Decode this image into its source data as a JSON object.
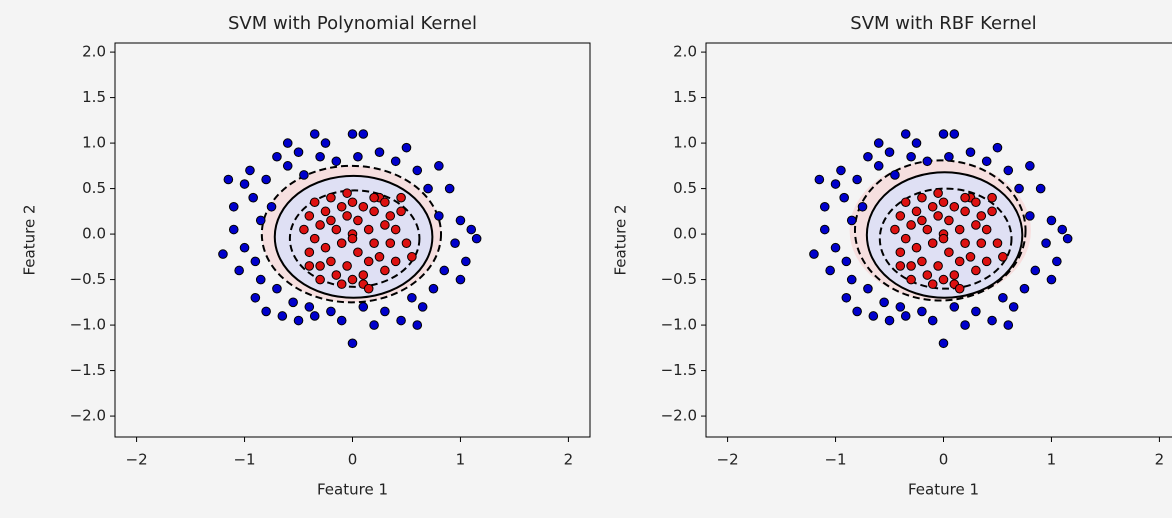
{
  "chart_data": [
    {
      "type": "scatter",
      "title": "SVM with Polynomial Kernel",
      "x_label": "Feature 1",
      "y_label": "Feature 2",
      "xlim": [
        -2.2,
        2.2
      ],
      "ylim": [
        -2.23,
        2.1
      ],
      "xticks": [
        {
          "value": -2,
          "label": "−2"
        },
        {
          "value": -1,
          "label": "−1"
        },
        0,
        1,
        2
      ],
      "yticks": [
        {
          "value": -2,
          "label": "−2.0"
        },
        {
          "value": -1.5,
          "label": "−1.5"
        },
        {
          "value": -1,
          "label": "−1.0"
        },
        {
          "value": -0.5,
          "label": "−0.5"
        },
        {
          "value": 0,
          "label": "0.0"
        },
        0.5,
        {
          "value": 1,
          "label": "1.0"
        },
        1.5,
        {
          "value": 2,
          "label": "2.0"
        }
      ],
      "regions": [
        {
          "color": "#f6dfdf",
          "cx": -0.01,
          "cy": 0.0,
          "rx": 0.83,
          "ry": 0.75
        },
        {
          "color": "#dfe0f4",
          "cx": 0.01,
          "cy": -0.03,
          "rx": 0.73,
          "ry": 0.67
        }
      ],
      "contours": [
        {
          "linestyle": "dashed",
          "cx": -0.01,
          "cy": 0.0,
          "rx": 0.83,
          "ry": 0.75
        },
        {
          "linestyle": "solid",
          "cx": 0.01,
          "cy": -0.03,
          "rx": 0.73,
          "ry": 0.67
        },
        {
          "linestyle": "dashed",
          "cx": 0.02,
          "cy": -0.05,
          "rx": 0.6,
          "ry": 0.53
        }
      ],
      "series": [
        {
          "color": "#0000cc",
          "x": [
            -1.2,
            -1.1,
            -1.1,
            -1.05,
            -1.0,
            -1.0,
            -0.95,
            -0.92,
            -0.9,
            -0.9,
            -0.85,
            -0.85,
            -0.8,
            -0.8,
            -0.75,
            -0.7,
            -0.7,
            -0.65,
            -0.6,
            -0.55,
            -0.5,
            -0.5,
            -0.45,
            -0.4,
            -0.35,
            -0.35,
            -0.3,
            -0.25,
            -0.2,
            -0.15,
            -0.1,
            0.0,
            0.0,
            0.05,
            0.1,
            0.1,
            0.2,
            0.25,
            0.3,
            0.4,
            0.45,
            0.5,
            0.55,
            0.6,
            0.65,
            0.7,
            0.75,
            0.8,
            0.8,
            0.85,
            0.9,
            0.95,
            1.0,
            1.0,
            1.05,
            1.1,
            1.15,
            -0.6,
            0.6,
            -1.15
          ],
          "y": [
            -0.22,
            0.3,
            0.05,
            -0.4,
            0.55,
            -0.15,
            0.7,
            0.4,
            -0.3,
            -0.7,
            0.15,
            -0.5,
            0.6,
            -0.85,
            0.3,
            0.85,
            -0.6,
            -0.9,
            0.75,
            -0.75,
            0.9,
            -0.95,
            0.65,
            -0.8,
            1.1,
            -0.9,
            0.85,
            1.0,
            -0.85,
            0.8,
            -0.95,
            1.1,
            -1.2,
            0.85,
            1.1,
            -0.8,
            -1.0,
            0.9,
            -0.85,
            0.8,
            -0.95,
            0.95,
            -0.7,
            0.7,
            -0.8,
            0.5,
            -0.6,
            0.75,
            0.2,
            -0.4,
            0.5,
            -0.1,
            0.15,
            -0.5,
            -0.3,
            0.05,
            -0.05,
            1.0,
            -1.0,
            0.6
          ]
        },
        {
          "color": "#dd1111",
          "x": [
            -0.45,
            -0.4,
            -0.4,
            -0.35,
            -0.35,
            -0.3,
            -0.3,
            -0.25,
            -0.25,
            -0.2,
            -0.2,
            -0.15,
            -0.15,
            -0.1,
            -0.1,
            -0.05,
            -0.05,
            0.0,
            0.0,
            0.05,
            0.05,
            0.1,
            0.1,
            0.15,
            0.15,
            0.2,
            0.2,
            0.25,
            0.25,
            0.3,
            0.3,
            0.35,
            0.35,
            0.4,
            0.4,
            0.45,
            0.5,
            0.55,
            -0.3,
            -0.1,
            0.1,
            0.3,
            -0.2,
            0.0,
            0.2,
            -0.4,
            0.45,
            0.0,
            -0.05,
            0.15
          ],
          "y": [
            0.05,
            -0.2,
            0.2,
            0.35,
            -0.05,
            0.1,
            -0.35,
            0.25,
            -0.15,
            0.4,
            -0.3,
            0.05,
            -0.45,
            0.3,
            -0.1,
            0.2,
            -0.35,
            0.35,
            0.0,
            -0.2,
            0.15,
            0.3,
            -0.45,
            0.05,
            -0.3,
            0.25,
            -0.1,
            0.4,
            -0.25,
            0.1,
            -0.4,
            0.2,
            -0.1,
            0.05,
            -0.3,
            0.25,
            -0.1,
            -0.25,
            -0.5,
            -0.55,
            -0.55,
            0.35,
            0.15,
            -0.5,
            0.4,
            -0.35,
            0.4,
            -0.05,
            0.45,
            -0.6
          ]
        }
      ]
    },
    {
      "type": "scatter",
      "title": "SVM with RBF Kernel",
      "x_label": "Feature 1",
      "y_label": "Feature 2",
      "xlim": [
        -2.2,
        2.2
      ],
      "ylim": [
        -2.23,
        2.1
      ],
      "xticks": [
        {
          "value": -2,
          "label": "−2"
        },
        {
          "value": -1,
          "label": "−1"
        },
        0,
        1,
        2
      ],
      "yticks": [
        {
          "value": -2,
          "label": "−2.0"
        },
        {
          "value": -1.5,
          "label": "−1.5"
        },
        {
          "value": -1,
          "label": "−1.0"
        },
        {
          "value": -0.5,
          "label": "−0.5"
        },
        {
          "value": 0,
          "label": "0.0"
        },
        0.5,
        {
          "value": 1,
          "label": "1.0"
        },
        1.5,
        {
          "value": 2,
          "label": "2.0"
        }
      ],
      "regions": [
        {
          "color": "#f6dfdf",
          "cx": -0.03,
          "cy": 0.04,
          "rx": 0.84,
          "ry": 0.77
        },
        {
          "color": "#dfe0f4",
          "cx": 0.01,
          "cy": -0.01,
          "rx": 0.72,
          "ry": 0.69
        }
      ],
      "contours": [
        {
          "linestyle": "dashed",
          "cx": -0.03,
          "cy": 0.04,
          "rx": 0.79,
          "ry": 0.77
        },
        {
          "linestyle": "solid",
          "cx": 0.01,
          "cy": -0.01,
          "rx": 0.72,
          "ry": 0.69
        },
        {
          "linestyle": "dashed",
          "cx": 0.02,
          "cy": -0.05,
          "rx": 0.61,
          "ry": 0.55
        }
      ],
      "series": [
        {
          "color": "#0000cc",
          "x": [
            -1.2,
            -1.1,
            -1.1,
            -1.05,
            -1.0,
            -1.0,
            -0.95,
            -0.92,
            -0.9,
            -0.9,
            -0.85,
            -0.85,
            -0.8,
            -0.8,
            -0.75,
            -0.7,
            -0.7,
            -0.65,
            -0.6,
            -0.55,
            -0.5,
            -0.5,
            -0.45,
            -0.4,
            -0.35,
            -0.35,
            -0.3,
            -0.25,
            -0.2,
            -0.15,
            -0.1,
            0.0,
            0.0,
            0.05,
            0.1,
            0.1,
            0.2,
            0.25,
            0.3,
            0.4,
            0.45,
            0.5,
            0.55,
            0.6,
            0.65,
            0.7,
            0.75,
            0.8,
            0.8,
            0.85,
            0.9,
            0.95,
            1.0,
            1.0,
            1.05,
            1.1,
            1.15,
            -0.6,
            0.6,
            -1.15
          ],
          "y": [
            -0.22,
            0.3,
            0.05,
            -0.4,
            0.55,
            -0.15,
            0.7,
            0.4,
            -0.3,
            -0.7,
            0.15,
            -0.5,
            0.6,
            -0.85,
            0.3,
            0.85,
            -0.6,
            -0.9,
            0.75,
            -0.75,
            0.9,
            -0.95,
            0.65,
            -0.8,
            1.1,
            -0.9,
            0.85,
            1.0,
            -0.85,
            0.8,
            -0.95,
            1.1,
            -1.2,
            0.85,
            1.1,
            -0.8,
            -1.0,
            0.9,
            -0.85,
            0.8,
            -0.95,
            0.95,
            -0.7,
            0.7,
            -0.8,
            0.5,
            -0.6,
            0.75,
            0.2,
            -0.4,
            0.5,
            -0.1,
            0.15,
            -0.5,
            -0.3,
            0.05,
            -0.05,
            1.0,
            -1.0,
            0.6
          ]
        },
        {
          "color": "#dd1111",
          "x": [
            -0.45,
            -0.4,
            -0.4,
            -0.35,
            -0.35,
            -0.3,
            -0.3,
            -0.25,
            -0.25,
            -0.2,
            -0.2,
            -0.15,
            -0.15,
            -0.1,
            -0.1,
            -0.05,
            -0.05,
            0.0,
            0.0,
            0.05,
            0.05,
            0.1,
            0.1,
            0.15,
            0.15,
            0.2,
            0.2,
            0.25,
            0.25,
            0.3,
            0.3,
            0.35,
            0.35,
            0.4,
            0.4,
            0.45,
            0.5,
            0.55,
            -0.3,
            -0.1,
            0.1,
            0.3,
            -0.2,
            0.0,
            0.2,
            -0.4,
            0.45,
            0.0,
            -0.05,
            0.15
          ],
          "y": [
            0.05,
            -0.2,
            0.2,
            0.35,
            -0.05,
            0.1,
            -0.35,
            0.25,
            -0.15,
            0.4,
            -0.3,
            0.05,
            -0.45,
            0.3,
            -0.1,
            0.2,
            -0.35,
            0.35,
            0.0,
            -0.2,
            0.15,
            0.3,
            -0.45,
            0.05,
            -0.3,
            0.25,
            -0.1,
            0.4,
            -0.25,
            0.1,
            -0.4,
            0.2,
            -0.1,
            0.05,
            -0.3,
            0.25,
            -0.1,
            -0.25,
            -0.5,
            -0.55,
            -0.55,
            0.35,
            0.15,
            -0.5,
            0.4,
            -0.35,
            0.4,
            -0.05,
            0.45,
            -0.6
          ]
        }
      ]
    }
  ]
}
